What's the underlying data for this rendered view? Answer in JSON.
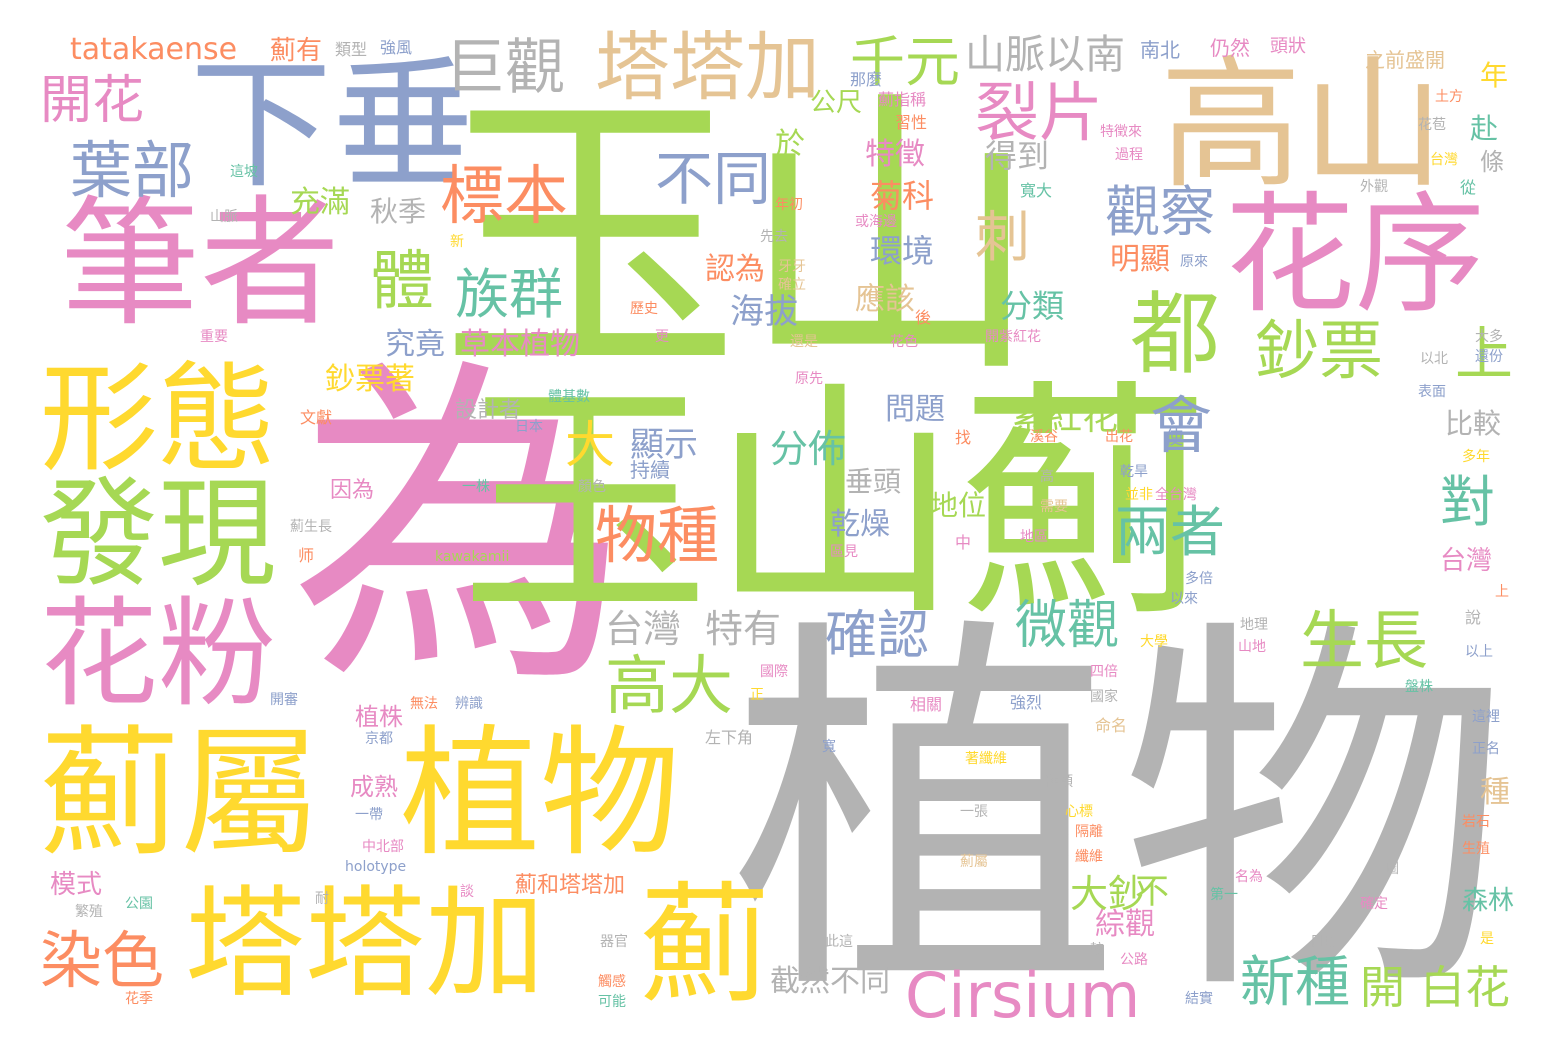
{
  "colors": {
    "green": "#a6d854",
    "pink": "#e78ac3",
    "gray": "#b3b3b3",
    "yellow": "#ffd92f",
    "tan": "#e5c494",
    "blue": "#8da0cb",
    "orange": "#fc8d62",
    "teal": "#66c2a5"
  },
  "words": [
    {
      "text": "玉山",
      "color": "green"
    },
    {
      "text": "植物",
      "color": "gray"
    },
    {
      "text": "為",
      "color": "pink"
    },
    {
      "text": "玉山薊",
      "color": "green"
    },
    {
      "text": "高山",
      "color": "tan"
    },
    {
      "text": "下垂",
      "color": "blue"
    },
    {
      "text": "筆者",
      "color": "pink"
    },
    {
      "text": "花序",
      "color": "pink"
    },
    {
      "text": "形態",
      "color": "yellow"
    },
    {
      "text": "發現",
      "color": "green"
    },
    {
      "text": "花粉",
      "color": "pink"
    },
    {
      "text": "薊屬",
      "color": "yellow"
    },
    {
      "text": "植物",
      "color": "yellow"
    },
    {
      "text": "塔塔加",
      "color": "yellow"
    },
    {
      "text": "薊",
      "color": "yellow"
    },
    {
      "text": "塔塔加",
      "color": "tan"
    },
    {
      "text": "都",
      "color": "green"
    },
    {
      "text": "Cirsium",
      "color": "pink"
    },
    {
      "text": "巨觀",
      "color": "gray"
    },
    {
      "text": "千元",
      "color": "green"
    },
    {
      "text": "裂片",
      "color": "pink"
    },
    {
      "text": "山脈",
      "color": "gray"
    },
    {
      "text": "以南",
      "color": "gray"
    },
    {
      "text": "開花",
      "color": "pink"
    },
    {
      "text": "葉部",
      "color": "blue"
    },
    {
      "text": "標本",
      "color": "orange"
    },
    {
      "text": "不同",
      "color": "blue"
    },
    {
      "text": "觀察",
      "color": "blue"
    },
    {
      "text": "刺",
      "color": "tan"
    },
    {
      "text": "體",
      "color": "green"
    },
    {
      "text": "族群",
      "color": "teal"
    },
    {
      "text": "鈔票",
      "color": "green"
    },
    {
      "text": "上",
      "color": "green"
    },
    {
      "text": "會",
      "color": "blue"
    },
    {
      "text": "物種",
      "color": "orange"
    },
    {
      "text": "大",
      "color": "yellow"
    },
    {
      "text": "兩者",
      "color": "teal"
    },
    {
      "text": "對",
      "color": "teal"
    },
    {
      "text": "確認",
      "color": "blue"
    },
    {
      "text": "微觀",
      "color": "teal"
    },
    {
      "text": "生長",
      "color": "green"
    },
    {
      "text": "台灣",
      "color": "gray"
    },
    {
      "text": "特有",
      "color": "gray"
    },
    {
      "text": "高大",
      "color": "green"
    },
    {
      "text": "染色",
      "color": "orange"
    },
    {
      "text": "新種",
      "color": "teal"
    },
    {
      "text": "開",
      "color": "green"
    },
    {
      "text": "白花",
      "color": "green"
    },
    {
      "text": "分佈",
      "color": "teal"
    },
    {
      "text": "顯示",
      "color": "blue"
    },
    {
      "text": "紫紅花",
      "color": "green"
    },
    {
      "text": "問題",
      "color": "blue"
    },
    {
      "text": "比較",
      "color": "gray"
    },
    {
      "text": "菊科",
      "color": "orange"
    },
    {
      "text": "特徵",
      "color": "pink"
    },
    {
      "text": "環境",
      "color": "blue"
    },
    {
      "text": "應該",
      "color": "tan"
    },
    {
      "text": "分類",
      "color": "teal"
    },
    {
      "text": "明顯",
      "color": "orange"
    },
    {
      "text": "得到",
      "color": "gray"
    },
    {
      "text": "海拔",
      "color": "blue"
    },
    {
      "text": "認為",
      "color": "orange"
    },
    {
      "text": "草本植物",
      "color": "pink"
    },
    {
      "text": "究竟",
      "color": "blue"
    },
    {
      "text": "秋季",
      "color": "gray"
    },
    {
      "text": "充滿",
      "color": "green"
    },
    {
      "text": "公尺",
      "color": "green"
    },
    {
      "text": "於",
      "color": "green"
    },
    {
      "text": "乾燥",
      "color": "blue"
    },
    {
      "text": "地位",
      "color": "green"
    },
    {
      "text": "垂頭",
      "color": "gray"
    },
    {
      "text": "大鈔",
      "color": "green"
    },
    {
      "text": "不",
      "color": "green"
    },
    {
      "text": "截然不同",
      "color": "gray"
    },
    {
      "text": "綜觀",
      "color": "pink"
    },
    {
      "text": "鈔票著",
      "color": "yellow"
    },
    {
      "text": "設計者",
      "color": "gray"
    },
    {
      "text": "tatakaense",
      "color": "orange"
    },
    {
      "text": "薊有",
      "color": "orange"
    },
    {
      "text": "植株",
      "color": "pink"
    },
    {
      "text": "模式",
      "color": "pink"
    },
    {
      "text": "成熟",
      "color": "pink"
    },
    {
      "text": "薊和塔塔加",
      "color": "orange"
    },
    {
      "text": "因為",
      "color": "pink"
    },
    {
      "text": "年",
      "color": "yellow"
    },
    {
      "text": "赴",
      "color": "teal"
    },
    {
      "text": "條",
      "color": "gray"
    },
    {
      "text": "台灣",
      "color": "pink"
    },
    {
      "text": "種",
      "color": "tan"
    },
    {
      "text": "森林",
      "color": "teal"
    },
    {
      "text": "持續",
      "color": "blue"
    },
    {
      "text": "仍然",
      "color": "pink"
    },
    {
      "text": "頭狀",
      "color": "pink"
    },
    {
      "text": "南北",
      "color": "blue"
    },
    {
      "text": "之前盛開",
      "color": "tan"
    },
    {
      "text": "強風",
      "color": "blue"
    },
    {
      "text": "類型",
      "color": "gray"
    },
    {
      "text": "那麼",
      "color": "blue"
    },
    {
      "text": "薊指稱",
      "color": "pink"
    },
    {
      "text": "習性",
      "color": "orange"
    },
    {
      "text": "特徵來",
      "color": "pink"
    },
    {
      "text": "過程",
      "color": "pink"
    },
    {
      "text": "寬大",
      "color": "teal"
    },
    {
      "text": "年初",
      "color": "orange"
    },
    {
      "text": "或海邊",
      "color": "pink"
    },
    {
      "text": "先去",
      "color": "gray"
    },
    {
      "text": "牙牙",
      "color": "tan"
    },
    {
      "text": "確立",
      "color": "tan"
    },
    {
      "text": "原來",
      "color": "blue"
    },
    {
      "text": "開紫紅花",
      "color": "pink"
    },
    {
      "text": "花色",
      "color": "pink"
    },
    {
      "text": "後",
      "color": "orange"
    },
    {
      "text": "歷史",
      "color": "orange"
    },
    {
      "text": "更",
      "color": "pink"
    },
    {
      "text": "還是",
      "color": "tan"
    },
    {
      "text": "原先",
      "color": "pink"
    },
    {
      "text": "體基數",
      "color": "teal"
    },
    {
      "text": "文獻",
      "color": "orange"
    },
    {
      "text": "重要",
      "color": "pink"
    },
    {
      "text": "日本",
      "color": "blue"
    },
    {
      "text": "顏色",
      "color": "gray"
    },
    {
      "text": "一株",
      "color": "teal"
    },
    {
      "text": "kawakamii",
      "color": "green"
    },
    {
      "text": "薊生長",
      "color": "gray"
    },
    {
      "text": "溪谷",
      "color": "orange"
    },
    {
      "text": "出花",
      "color": "orange"
    },
    {
      "text": "乾旱",
      "color": "blue"
    },
    {
      "text": "使",
      "color": "blue"
    },
    {
      "text": "並非",
      "color": "yellow"
    },
    {
      "text": "全台灣",
      "color": "pink"
    },
    {
      "text": "地區",
      "color": "pink"
    },
    {
      "text": "需要",
      "color": "tan"
    },
    {
      "text": "區見",
      "color": "pink"
    },
    {
      "text": "中",
      "color": "pink"
    },
    {
      "text": "找",
      "color": "orange"
    },
    {
      "text": "高",
      "color": "gray"
    },
    {
      "text": "多倍",
      "color": "blue"
    },
    {
      "text": "以來",
      "color": "blue"
    },
    {
      "text": "地理",
      "color": "gray"
    },
    {
      "text": "山地",
      "color": "pink"
    },
    {
      "text": "大學",
      "color": "yellow"
    },
    {
      "text": "四倍",
      "color": "pink"
    },
    {
      "text": "國家",
      "color": "gray"
    },
    {
      "text": "命名",
      "color": "tan"
    },
    {
      "text": "強烈",
      "color": "blue"
    },
    {
      "text": "相關",
      "color": "pink"
    },
    {
      "text": "國際",
      "color": "pink"
    },
    {
      "text": "正",
      "color": "yellow"
    },
    {
      "text": "左下角",
      "color": "gray"
    },
    {
      "text": "無法",
      "color": "orange"
    },
    {
      "text": "辨識",
      "color": "blue"
    },
    {
      "text": "開審",
      "color": "blue"
    },
    {
      "text": "京都",
      "color": "blue"
    },
    {
      "text": "一帶",
      "color": "blue"
    },
    {
      "text": "中北部",
      "color": "pink"
    },
    {
      "text": "holotype",
      "color": "blue"
    },
    {
      "text": "公園",
      "color": "teal"
    },
    {
      "text": "繁殖",
      "color": "gray"
    },
    {
      "text": "談",
      "color": "pink"
    },
    {
      "text": "耐",
      "color": "gray"
    },
    {
      "text": "花季",
      "color": "orange"
    },
    {
      "text": "觸感",
      "color": "orange"
    },
    {
      "text": "可能",
      "color": "teal"
    },
    {
      "text": "器官",
      "color": "gray"
    },
    {
      "text": "此這",
      "color": "gray"
    },
    {
      "text": "較",
      "color": "gray"
    },
    {
      "text": "公路",
      "color": "pink"
    },
    {
      "text": "結實",
      "color": "blue"
    },
    {
      "text": "日照",
      "color": "gray"
    },
    {
      "text": "確定",
      "color": "pink"
    },
    {
      "text": "第一",
      "color": "teal"
    },
    {
      "text": "名為",
      "color": "pink"
    },
    {
      "text": "薊屬",
      "color": "tan"
    },
    {
      "text": "纖維",
      "color": "orange"
    },
    {
      "text": "隔離",
      "color": "orange"
    },
    {
      "text": "心標",
      "color": "yellow"
    },
    {
      "text": "一張",
      "color": "gray"
    },
    {
      "text": "種類",
      "color": "gray"
    },
    {
      "text": "寬",
      "color": "blue"
    },
    {
      "text": "著纖維",
      "color": "yellow"
    },
    {
      "text": "圖",
      "color": "gray"
    },
    {
      "text": "是",
      "color": "yellow"
    },
    {
      "text": "生殖",
      "color": "orange"
    },
    {
      "text": "岩石",
      "color": "orange"
    },
    {
      "text": "正名",
      "color": "blue"
    },
    {
      "text": "這裡",
      "color": "blue"
    },
    {
      "text": "盤株",
      "color": "teal"
    },
    {
      "text": "以上",
      "color": "blue"
    },
    {
      "text": "說",
      "color": "gray"
    },
    {
      "text": "上",
      "color": "orange"
    },
    {
      "text": "多年",
      "color": "yellow"
    },
    {
      "text": "表面",
      "color": "blue"
    },
    {
      "text": "還份",
      "color": "blue"
    },
    {
      "text": "大多",
      "color": "gray"
    },
    {
      "text": "以北",
      "color": "gray"
    },
    {
      "text": "從",
      "color": "teal"
    },
    {
      "text": "外觀",
      "color": "gray"
    },
    {
      "text": "台灣",
      "color": "yellow"
    },
    {
      "text": "花苞",
      "color": "gray"
    },
    {
      "text": "土方",
      "color": "orange"
    },
    {
      "text": "山脈",
      "color": "gray"
    },
    {
      "text": "這坡",
      "color": "teal"
    },
    {
      "text": "新",
      "color": "yellow"
    },
    {
      "text": "师",
      "color": "orange"
    }
  ]
}
